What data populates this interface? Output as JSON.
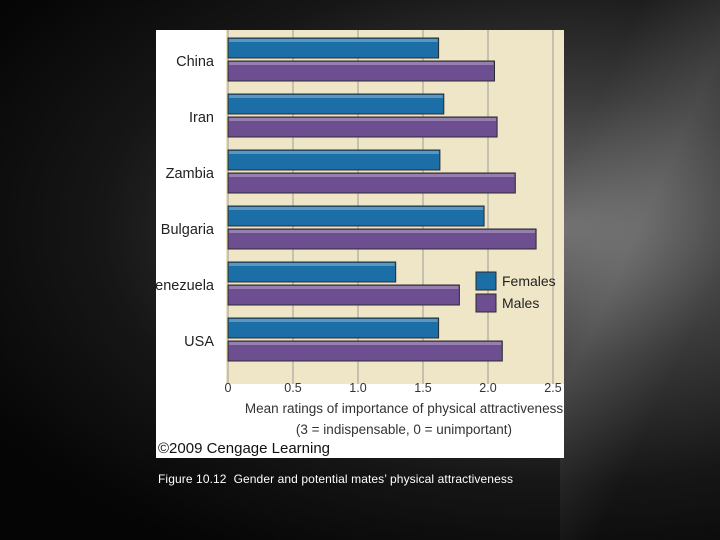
{
  "chart_data": {
    "type": "bar",
    "orientation": "horizontal",
    "categories": [
      "China",
      "Iran",
      "Zambia",
      "Bulgaria",
      "Venezuela",
      "USA"
    ],
    "series": [
      {
        "name": "Females",
        "color": "#1c6ea6",
        "values": [
          1.62,
          1.66,
          1.63,
          1.97,
          1.29,
          1.62
        ]
      },
      {
        "name": "Males",
        "color": "#6c4e91",
        "values": [
          2.05,
          2.07,
          2.21,
          2.37,
          1.78,
          2.11
        ]
      }
    ],
    "xlim": [
      0,
      2.5
    ],
    "xticks": [
      "0",
      "0.5",
      "1.0",
      "1.5",
      "2.0",
      "2.5"
    ],
    "xlabel": "Mean ratings of importance of physical attractiveness",
    "xlabel_sub": "(3 = indispensable, 0 = unimportant)",
    "grid": "vertical",
    "legend_position": "right"
  },
  "copyright": "©2009 Cengage Learning",
  "caption": {
    "figure": "Figure 10.12",
    "text": "Gender and potential mates’ physical attractiveness"
  }
}
